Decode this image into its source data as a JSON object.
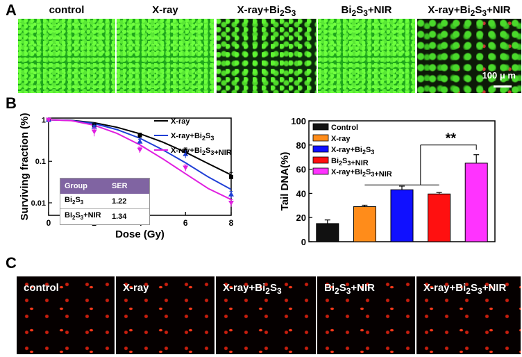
{
  "panel_labels": {
    "a": "A",
    "b": "B",
    "c": "C"
  },
  "panelA": {
    "titles": [
      "control",
      "X-ray",
      "X-ray+Bi2S3",
      "Bi2S3+NIR",
      "X-ray+Bi2S3+NIR"
    ],
    "scale_bar": "100 μ m"
  },
  "chart_data": [
    {
      "type": "line",
      "xlabel": "Dose (Gy)",
      "ylabel": "Surviving fraction (%)",
      "yscale": "log",
      "xlim": [
        0,
        8
      ],
      "ylim": [
        0.005,
        1.1
      ],
      "x_ticks": [
        0,
        2,
        4,
        6,
        8
      ],
      "y_ticks": [
        {
          "v": 1,
          "label": "1"
        },
        {
          "v": 0.1,
          "label": "0.1"
        },
        {
          "v": 0.01,
          "label": "0.01"
        }
      ],
      "legend_placement": "top-right",
      "series": [
        {
          "name": "X-ray",
          "color": "#000000",
          "marker": "square",
          "points": [
            [
              0,
              1.0
            ],
            [
              2,
              0.74
            ],
            [
              4,
              0.42
            ],
            [
              6,
              0.18
            ],
            [
              8,
              0.042
            ]
          ],
          "err": [
            0.02,
            0.05,
            0.06,
            0.03,
            0.012
          ],
          "fit": [
            [
              0,
              1
            ],
            [
              1,
              0.97
            ],
            [
              2,
              0.85
            ],
            [
              3,
              0.66
            ],
            [
              4,
              0.46
            ],
            [
              5,
              0.29
            ],
            [
              6,
              0.165
            ],
            [
              7,
              0.088
            ],
            [
              8,
              0.047
            ]
          ]
        },
        {
          "name": "X-ray+Bi2S3",
          "color": "#1f3fd6",
          "marker": "triangle-up",
          "points": [
            [
              0,
              1.0
            ],
            [
              2,
              0.68
            ],
            [
              4,
              0.3
            ],
            [
              6,
              0.15
            ],
            [
              8,
              0.016
            ]
          ],
          "err": [
            0.02,
            0.06,
            0.04,
            0.03,
            0.003
          ],
          "fit": [
            [
              0,
              1
            ],
            [
              1,
              0.96
            ],
            [
              2,
              0.81
            ],
            [
              3,
              0.58
            ],
            [
              4,
              0.36
            ],
            [
              5,
              0.19
            ],
            [
              6,
              0.092
            ],
            [
              7,
              0.042
            ],
            [
              8,
              0.021
            ]
          ]
        },
        {
          "name": "X-ray+Bi2S3+NIR",
          "color": "#e020e0",
          "marker": "triangle-down",
          "points": [
            [
              0,
              1.0
            ],
            [
              2,
              0.52
            ],
            [
              4,
              0.19
            ],
            [
              6,
              0.07
            ],
            [
              8,
              0.01
            ]
          ],
          "err": [
            0.02,
            0.12,
            0.03,
            0.012,
            0.002
          ],
          "fit": [
            [
              0,
              1
            ],
            [
              1,
              0.95
            ],
            [
              2,
              0.74
            ],
            [
              3,
              0.47
            ],
            [
              4,
              0.25
            ],
            [
              5,
              0.115
            ],
            [
              6,
              0.05
            ],
            [
              7,
              0.022
            ],
            [
              8,
              0.012
            ]
          ]
        }
      ],
      "table": {
        "header": [
          "Group",
          "SER"
        ],
        "rows": [
          [
            "Bi2S3",
            "1.22"
          ],
          [
            "Bi2S3+NIR",
            "1.34"
          ]
        ]
      }
    },
    {
      "type": "bar",
      "ylabel": "Tail DNA(%)",
      "ylim": [
        0,
        100
      ],
      "y_ticks": [
        0,
        20,
        40,
        60,
        80,
        100
      ],
      "categories": [
        "Control",
        "X-ray",
        "X-ray+Bi2S3",
        "Bi2S3+NIR",
        "X-ray+Bi2S3+NIR"
      ],
      "values": [
        15,
        29,
        43,
        39.5,
        65
      ],
      "errors": [
        3,
        1.2,
        3,
        1.2,
        7
      ],
      "colors": [
        "#111111",
        "#ff8c1a",
        "#1010ff",
        "#ff1010",
        "#ff33ff"
      ],
      "significance": "**",
      "legend_placement": "top-left"
    }
  ],
  "panelC": {
    "titles": [
      "control",
      "X-ray",
      "X-ray+Bi2S3",
      "Bi2S3+NIR",
      "X-ray+Bi2S3+NIR"
    ]
  }
}
